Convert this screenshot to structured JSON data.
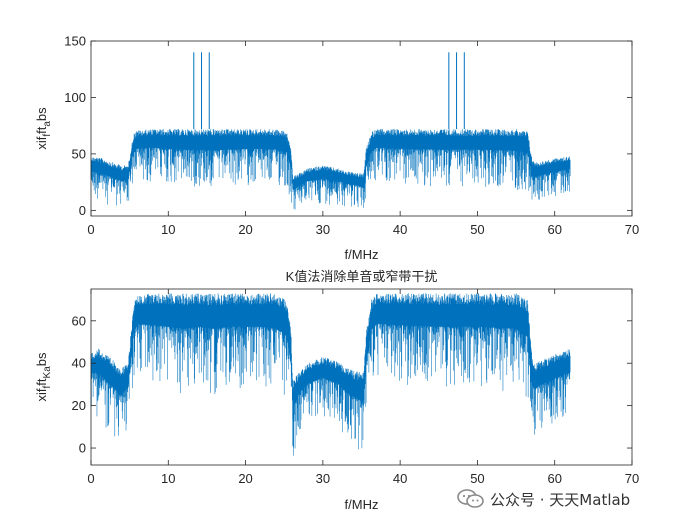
{
  "chart_data": [
    {
      "type": "line",
      "title": "",
      "xlabel": "f/MHz",
      "ylabel_parts": {
        "base": "xif",
        "sub1": "f",
        "mid": "ft",
        "sub2": "a",
        "tail": "bs"
      },
      "xlim": [
        0,
        70
      ],
      "ylim": [
        -5,
        150
      ],
      "xticks": [
        0,
        10,
        20,
        30,
        40,
        50,
        60,
        70
      ],
      "yticks": [
        0,
        50,
        100,
        150
      ],
      "grid": false,
      "series": [
        {
          "color": "#0072BD",
          "envelope": {
            "x": [
              0,
              1,
              2,
              3,
              4,
              4.8,
              5.5,
              6,
              8,
              10,
              12,
              14,
              16,
              18,
              20,
              22,
              24,
              25.3,
              25.9,
              26.1,
              27,
              28,
              30,
              32,
              33,
              34.5,
              35.3,
              35.6,
              36.3,
              37,
              40,
              45,
              50,
              55,
              56.5,
              57.1,
              57.5,
              58,
              60,
              62
            ],
            "upper": [
              48,
              47,
              45,
              42,
              40,
              40,
              68,
              71,
              72,
              72,
              72,
              72,
              72,
              72,
              72,
              72,
              72,
              70,
              55,
              30,
              33,
              37,
              40,
              37,
              35,
              33,
              33,
              55,
              70,
              72,
              72,
              72,
              72,
              72,
              70,
              45,
              43,
              43,
              46,
              48
            ],
            "lower": [
              10,
              8,
              5,
              3,
              0,
              5,
              20,
              25,
              25,
              22,
              20,
              20,
              18,
              20,
              22,
              22,
              20,
              18,
              5,
              -5,
              2,
              5,
              5,
              5,
              3,
              2,
              -5,
              8,
              20,
              25,
              22,
              20,
              20,
              18,
              15,
              3,
              5,
              8,
              12,
              15
            ]
          },
          "spikes": [
            {
              "x": 13.3,
              "y": 140
            },
            {
              "x": 14.3,
              "y": 140
            },
            {
              "x": 15.3,
              "y": 140
            },
            {
              "x": 46.3,
              "y": 140
            },
            {
              "x": 47.3,
              "y": 140
            },
            {
              "x": 48.3,
              "y": 140
            }
          ]
        }
      ]
    },
    {
      "type": "line",
      "title": "K值法消除单音或窄带干扰",
      "xlabel": "f/MHz",
      "ylabel_parts": {
        "base": "xif",
        "sub1": "f",
        "mid": "ft",
        "sub2": "Ka",
        "tail": "bs"
      },
      "xlim": [
        0,
        70
      ],
      "ylim": [
        -8,
        75
      ],
      "xticks": [
        0,
        10,
        20,
        30,
        40,
        50,
        60,
        70
      ],
      "yticks": [
        0,
        20,
        40,
        60
      ],
      "grid": false,
      "series": [
        {
          "color": "#0072BD",
          "envelope": {
            "x": [
              0,
              1,
              2,
              3,
              4,
              4.8,
              5.5,
              6,
              8,
              10,
              12,
              14,
              16,
              18,
              20,
              22,
              24,
              25.3,
              25.9,
              26.1,
              27,
              28,
              30,
              32,
              33,
              34.5,
              35.3,
              35.6,
              36.3,
              37,
              40,
              45,
              50,
              55,
              56.5,
              57.1,
              57.5,
              58,
              60,
              62
            ],
            "upper": [
              45,
              47,
              44,
              41,
              38,
              40,
              68,
              72,
              73,
              73,
              73,
              73,
              73,
              73,
              73,
              73,
              73,
              70,
              55,
              32,
              36,
              40,
              43,
              41,
              38,
              36,
              36,
              55,
              70,
              73,
              73,
              73,
              73,
              73,
              70,
              43,
              40,
              41,
              44,
              47
            ],
            "lower": [
              18,
              14,
              8,
              4,
              0,
              10,
              30,
              33,
              30,
              28,
              25,
              28,
              25,
              28,
              28,
              28,
              25,
              22,
              8,
              -6,
              8,
              12,
              15,
              10,
              5,
              0,
              -6,
              10,
              30,
              32,
              30,
              28,
              28,
              25,
              20,
              5,
              5,
              8,
              12,
              15
            ]
          },
          "spikes": []
        }
      ]
    }
  ],
  "watermark": {
    "text": "公众号 · 天天Matlab",
    "icon": "wechat-logo-icon"
  }
}
